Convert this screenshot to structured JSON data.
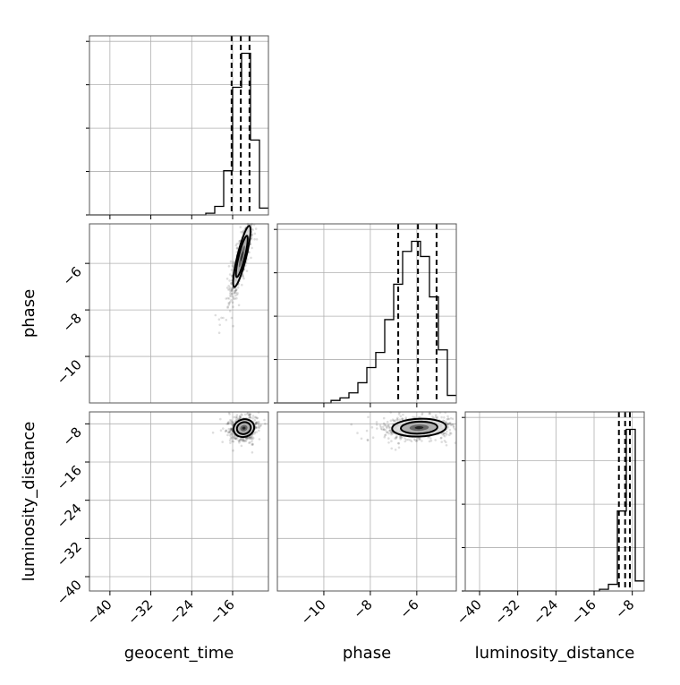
{
  "chart_data": {
    "type": "corner",
    "parameters": [
      "geocent_time",
      "phase",
      "luminosity_distance"
    ],
    "axis_labels": {
      "x": [
        "geocent_time",
        "phase",
        "luminosity_distance"
      ],
      "y": [
        "",
        "phase",
        "luminosity_distance"
      ]
    },
    "ranges": {
      "geocent_time": [
        -44,
        -9
      ],
      "phase": [
        -12.0,
        -4.3
      ],
      "luminosity_distance": [
        -43,
        -5.5
      ]
    },
    "ticks": {
      "geocent_time": [
        -40,
        -32,
        -24,
        -16
      ],
      "phase": [
        -10,
        -8,
        -6
      ],
      "luminosity_distance": [
        -40,
        -32,
        -24,
        -16,
        -8
      ]
    },
    "tick_labels": {
      "geocent_time": [
        "−40",
        "−32",
        "−24",
        "−16"
      ],
      "phase": [
        "−10",
        "−8",
        "−6"
      ],
      "luminosity_distance": [
        "−40",
        "−32",
        "−24",
        "−16",
        "−8"
      ]
    },
    "marginals": {
      "geocent_time": {
        "bin_edges": [
          -44,
          -42.25,
          -40.5,
          -38.75,
          -37,
          -35.25,
          -33.5,
          -31.75,
          -30,
          -28.25,
          -26.5,
          -24.75,
          -23,
          -21.25,
          -19.5,
          -17.75,
          -16,
          -14.25,
          -12.5,
          -10.75,
          -9
        ],
        "counts": [
          0,
          0,
          0,
          0,
          0,
          0,
          0,
          0,
          0,
          0,
          0,
          0,
          0,
          1,
          5,
          26,
          75,
          95,
          44,
          4
        ],
        "quantiles": [
          -16.2,
          -14.4,
          -12.7
        ]
      },
      "phase": {
        "bin_edges": [
          -12.0,
          -11.615,
          -11.23,
          -10.845,
          -10.46,
          -10.075,
          -9.69,
          -9.305,
          -8.92,
          -8.535,
          -8.15,
          -7.765,
          -7.38,
          -6.995,
          -6.61,
          -6.225,
          -5.84,
          -5.455,
          -5.07,
          -4.685,
          -4.3
        ],
        "counts": [
          0,
          0,
          0,
          0,
          0,
          0,
          1,
          2,
          4,
          8,
          14,
          20,
          33,
          47,
          60,
          64,
          58,
          42,
          21,
          3
        ],
        "quantiles": [
          -6.8,
          -5.95,
          -5.15
        ]
      },
      "luminosity_distance": {
        "bin_edges": [
          -43,
          -41.125,
          -39.25,
          -37.375,
          -35.5,
          -33.625,
          -31.75,
          -29.875,
          -28,
          -26.125,
          -24.25,
          -22.375,
          -20.5,
          -18.625,
          -16.75,
          -14.875,
          -13,
          -11.125,
          -9.25,
          -7.375,
          -5.5
        ],
        "counts": [
          0,
          0,
          0,
          0,
          0,
          0,
          0,
          0,
          0,
          0,
          0,
          0,
          0,
          0,
          0,
          1,
          4,
          48,
          97,
          6
        ],
        "quantiles": [
          -10.8,
          -9.5,
          -8.5
        ]
      }
    },
    "joint_2d": [
      {
        "x": "geocent_time",
        "y": "phase",
        "center": [
          -14.2,
          -5.7
        ],
        "std": [
          1.1,
          0.85
        ],
        "corr": 0.85
      },
      {
        "x": "geocent_time",
        "y": "luminosity_distance",
        "center": [
          -13.8,
          -8.9
        ],
        "std": [
          1.3,
          1.2
        ],
        "corr": 0.1
      },
      {
        "x": "phase",
        "y": "luminosity_distance",
        "center": [
          -5.9,
          -8.8
        ],
        "std": [
          0.75,
          1.2
        ],
        "corr": 0.1
      }
    ],
    "grid": true
  }
}
